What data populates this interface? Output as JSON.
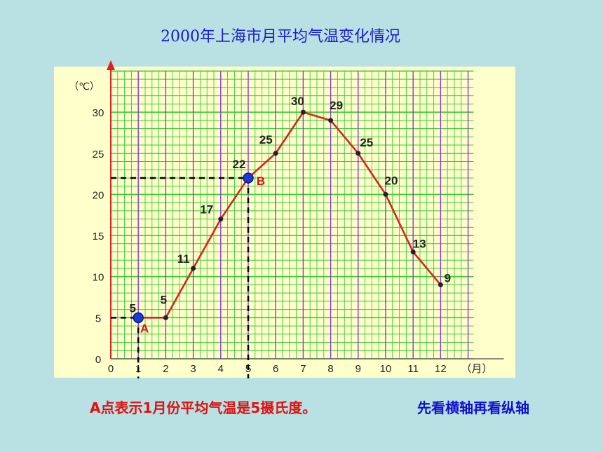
{
  "title": "2000年上海市月平均气温变化情况",
  "caption_left": "A点表示1月份平均气温是5摄氏度。",
  "caption_right": "先看横轴再看纵轴",
  "chart_data": {
    "type": "line",
    "title": "2000年上海市月平均气温变化情况",
    "xlabel": "（月）",
    "ylabel": "（℃）",
    "x": [
      1,
      2,
      3,
      4,
      5,
      6,
      7,
      8,
      9,
      10,
      11,
      12
    ],
    "series": [
      {
        "values": [
          5,
          5,
          11,
          17,
          22,
          25,
          30,
          29,
          25,
          20,
          13,
          9
        ]
      }
    ],
    "xticks": [
      0,
      1,
      2,
      3,
      4,
      5,
      6,
      7,
      8,
      9,
      10,
      11,
      12
    ],
    "yticks": [
      0,
      5,
      10,
      15,
      20,
      25,
      30
    ],
    "xlim": [
      0,
      12
    ],
    "ylim": [
      0,
      30
    ],
    "grid": true,
    "annotations": [
      {
        "label": "A",
        "x": 1,
        "y": 5
      },
      {
        "label": "B",
        "x": 5,
        "y": 22
      }
    ],
    "colors": {
      "line": "#e02020",
      "grid_h": "#33cc33",
      "grid_v": "#9933cc",
      "highlight_point": "#1a3ad6",
      "panel": "#ffffcc"
    }
  }
}
